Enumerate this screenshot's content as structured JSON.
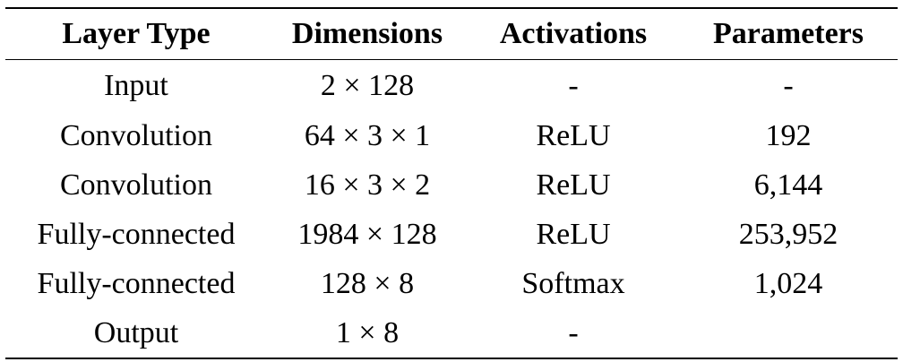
{
  "table": {
    "columns": [
      "Layer Type",
      "Dimensions",
      "Activations",
      "Parameters"
    ],
    "rows": [
      [
        "Input",
        "2 × 128",
        "-",
        "-"
      ],
      [
        "Convolution",
        "64 × 3 × 1",
        "ReLU",
        "192"
      ],
      [
        "Convolution",
        "16 × 3 × 2",
        "ReLU",
        "6,144"
      ],
      [
        "Fully-connected",
        "1984 × 128",
        "ReLU",
        "253,952"
      ],
      [
        "Fully-connected",
        "128 × 8",
        "Softmax",
        "1,024"
      ],
      [
        "Output",
        "1 × 8",
        "-",
        ""
      ]
    ]
  }
}
